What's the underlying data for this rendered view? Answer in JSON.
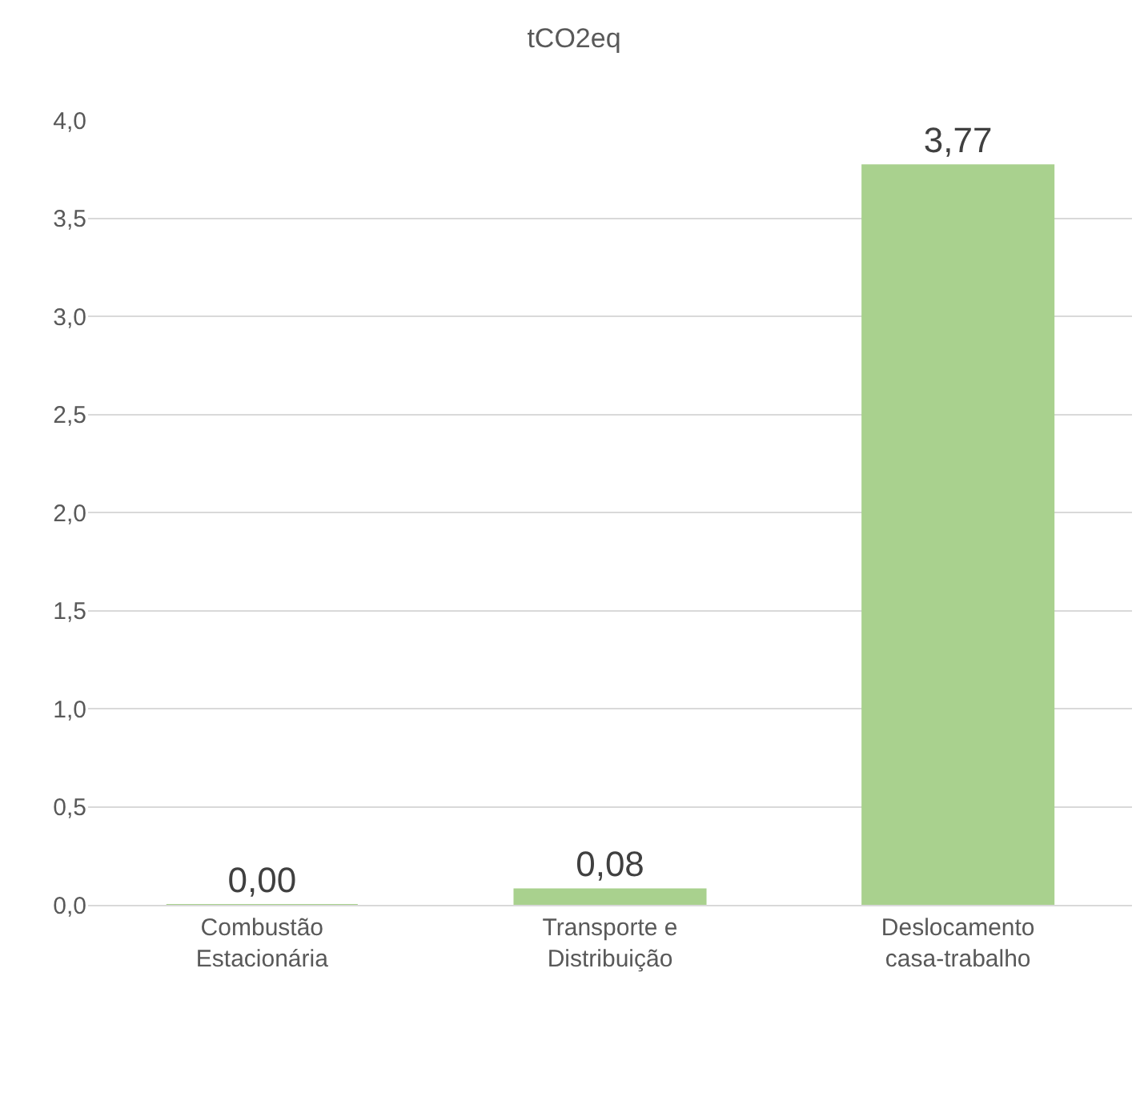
{
  "chart_data": {
    "type": "bar",
    "title": "tCO2eq",
    "categories": [
      "Combustão\nEstacionária",
      "Transporte e\nDistribuição",
      "Deslocamento\ncasa-trabalho"
    ],
    "values": [
      0.0,
      0.08,
      3.77
    ],
    "color": "#a9d18e",
    "value_labels": [
      "0,00",
      "0,08",
      "3,77"
    ],
    "ylim": [
      0,
      4
    ],
    "yticks": [
      {
        "value": 0,
        "label": "0,0"
      },
      {
        "value": 0.5,
        "label": "0,5"
      },
      {
        "value": 1,
        "label": "1,0"
      },
      {
        "value": 1.5,
        "label": "1,5"
      },
      {
        "value": 2,
        "label": "2,0"
      },
      {
        "value": 2.5,
        "label": "2,5"
      },
      {
        "value": 3,
        "label": "3,0"
      },
      {
        "value": 3.5,
        "label": "3,5"
      },
      {
        "value": 4,
        "label": "4,0"
      }
    ],
    "grid": "y"
  }
}
